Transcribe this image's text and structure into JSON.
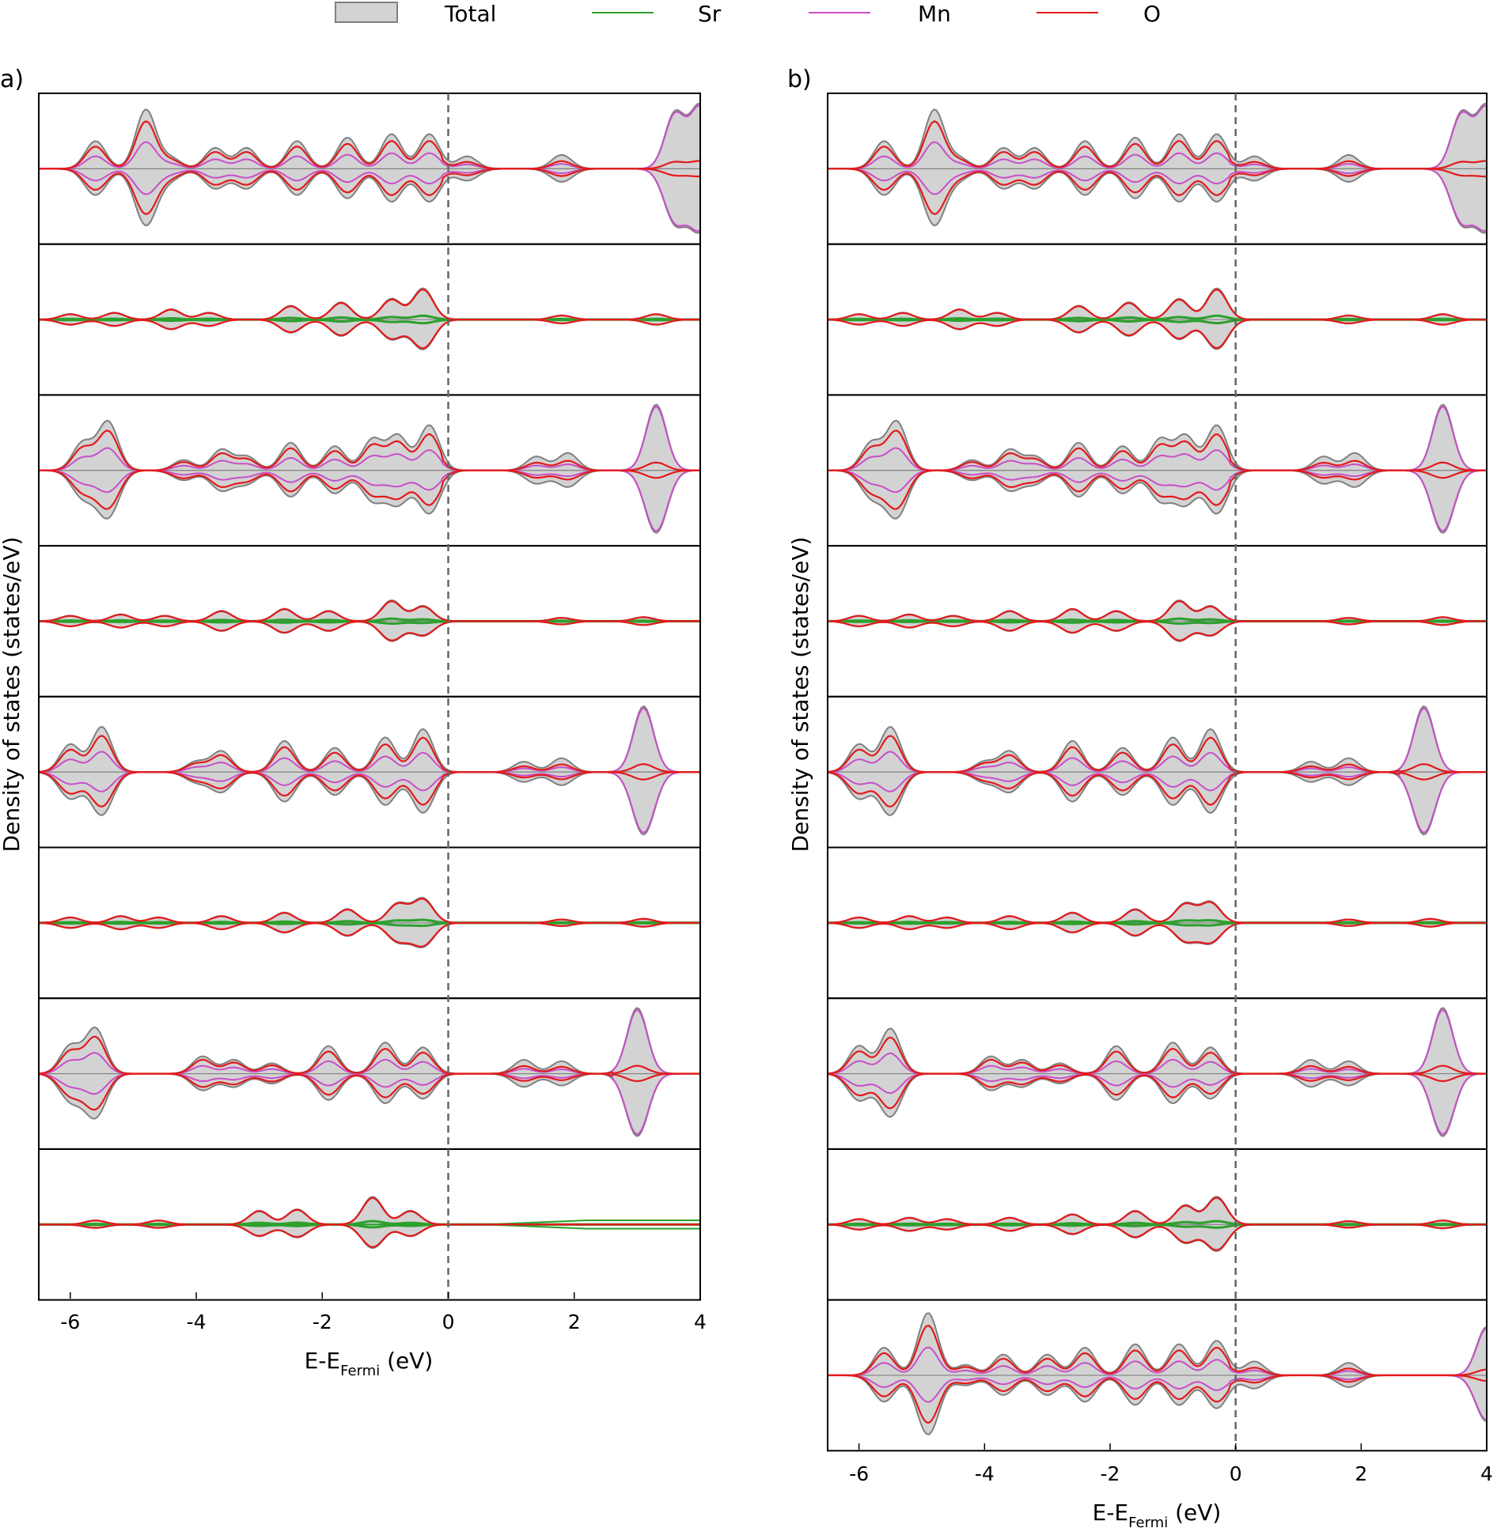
{
  "figure": {
    "panel_labels": [
      "a)",
      "b)"
    ]
  },
  "legend": {
    "entries": [
      "Total",
      "Sr",
      "Mn",
      "O"
    ]
  },
  "axes": {
    "ylabel": "Density of states (states/eV)",
    "xlabel_main": "E-E",
    "xlabel_sub": "Fermi",
    "xlabel_unit": " (eV)",
    "x_tick_labels": [
      "-6",
      "-4",
      "-2",
      "0",
      "2",
      "4"
    ]
  },
  "colors": {
    "total_fill": "#d3d3d3",
    "total_line": "#808080",
    "sr": "#2ca02c",
    "mn": "#c84fc8",
    "o": "#e31a1c",
    "fermi": "#666666"
  },
  "chart_data": [
    {
      "panel": "a)",
      "type": "area",
      "title": "",
      "xlabel": "E-E_Fermi (eV)",
      "ylabel": "Density of states (states/eV)",
      "xlim": [
        -6.5,
        4
      ],
      "x_ticks": [
        -6,
        -4,
        -2,
        0,
        2,
        4
      ],
      "fermi_level": 0,
      "series_names": [
        "Total",
        "Sr",
        "Mn",
        "O"
      ],
      "stacked_subplots": [
        {
          "kind": "mn",
          "peaks": [
            [
              -5.6,
              0.4
            ],
            [
              -4.8,
              0.85
            ],
            [
              -4.4,
              0.15
            ],
            [
              -3.7,
              0.3
            ],
            [
              -3.2,
              0.3
            ],
            [
              -2.4,
              0.4
            ],
            [
              -1.6,
              0.45
            ],
            [
              -0.9,
              0.5
            ],
            [
              -0.3,
              0.5
            ],
            [
              0.3,
              0.18
            ],
            [
              1.8,
              0.2
            ],
            [
              3.6,
              0.8
            ],
            [
              4.0,
              0.9
            ]
          ]
        },
        {
          "kind": "sr",
          "peaks": [
            [
              -6.0,
              0.08
            ],
            [
              -5.3,
              0.1
            ],
            [
              -4.4,
              0.15
            ],
            [
              -3.8,
              0.1
            ],
            [
              -2.5,
              0.2
            ],
            [
              -1.7,
              0.25
            ],
            [
              -0.9,
              0.3
            ],
            [
              -0.4,
              0.45
            ],
            [
              1.8,
              0.06
            ],
            [
              3.3,
              0.08
            ]
          ]
        },
        {
          "kind": "mn",
          "peaks": [
            [
              -5.8,
              0.4
            ],
            [
              -5.4,
              0.7
            ],
            [
              -4.2,
              0.15
            ],
            [
              -3.6,
              0.3
            ],
            [
              -3.2,
              0.2
            ],
            [
              -2.5,
              0.4
            ],
            [
              -1.8,
              0.35
            ],
            [
              -1.2,
              0.45
            ],
            [
              -0.8,
              0.5
            ],
            [
              -0.3,
              0.65
            ],
            [
              1.4,
              0.2
            ],
            [
              1.9,
              0.25
            ],
            [
              3.3,
              0.95
            ]
          ]
        },
        {
          "kind": "sr",
          "peaks": [
            [
              -6.0,
              0.08
            ],
            [
              -5.2,
              0.1
            ],
            [
              -4.5,
              0.08
            ],
            [
              -3.6,
              0.15
            ],
            [
              -2.6,
              0.18
            ],
            [
              -1.9,
              0.15
            ],
            [
              -0.9,
              0.3
            ],
            [
              -0.4,
              0.22
            ],
            [
              1.8,
              0.05
            ],
            [
              3.1,
              0.06
            ]
          ]
        },
        {
          "kind": "mn",
          "peaks": [
            [
              -6.0,
              0.4
            ],
            [
              -5.5,
              0.65
            ],
            [
              -4.0,
              0.15
            ],
            [
              -3.6,
              0.3
            ],
            [
              -2.6,
              0.45
            ],
            [
              -1.8,
              0.35
            ],
            [
              -1.0,
              0.5
            ],
            [
              -0.4,
              0.62
            ],
            [
              1.2,
              0.15
            ],
            [
              1.8,
              0.2
            ],
            [
              3.1,
              0.95
            ]
          ]
        },
        {
          "kind": "sr",
          "peaks": [
            [
              -6.0,
              0.08
            ],
            [
              -5.2,
              0.1
            ],
            [
              -4.6,
              0.08
            ],
            [
              -3.6,
              0.1
            ],
            [
              -2.6,
              0.15
            ],
            [
              -1.6,
              0.2
            ],
            [
              -0.8,
              0.28
            ],
            [
              -0.4,
              0.35
            ],
            [
              1.8,
              0.05
            ],
            [
              3.1,
              0.06
            ]
          ]
        },
        {
          "kind": "mn",
          "peaks": [
            [
              -6.0,
              0.4
            ],
            [
              -5.6,
              0.65
            ],
            [
              -3.9,
              0.25
            ],
            [
              -3.4,
              0.2
            ],
            [
              -2.8,
              0.15
            ],
            [
              -1.9,
              0.4
            ],
            [
              -1.0,
              0.45
            ],
            [
              -0.4,
              0.38
            ],
            [
              1.2,
              0.2
            ],
            [
              1.8,
              0.18
            ],
            [
              3.0,
              0.95
            ]
          ]
        },
        {
          "kind": "sr_metal",
          "peaks": [
            [
              -5.6,
              0.06
            ],
            [
              -4.6,
              0.06
            ],
            [
              -3.0,
              0.2
            ],
            [
              -2.4,
              0.22
            ],
            [
              -1.2,
              0.4
            ],
            [
              -0.6,
              0.2
            ]
          ]
        }
      ]
    },
    {
      "panel": "b)",
      "type": "area",
      "title": "",
      "xlabel": "E-E_Fermi (eV)",
      "ylabel": "Density of states (states/eV)",
      "xlim": [
        -6.5,
        4
      ],
      "x_ticks": [
        -6,
        -4,
        -2,
        0,
        2,
        4
      ],
      "fermi_level": 0,
      "series_names": [
        "Total",
        "Sr",
        "Mn",
        "O"
      ],
      "stacked_subplots": [
        {
          "kind": "mn",
          "peaks": [
            [
              -5.6,
              0.4
            ],
            [
              -4.8,
              0.85
            ],
            [
              -4.4,
              0.15
            ],
            [
              -3.7,
              0.3
            ],
            [
              -3.2,
              0.3
            ],
            [
              -2.4,
              0.4
            ],
            [
              -1.6,
              0.45
            ],
            [
              -0.9,
              0.5
            ],
            [
              -0.3,
              0.5
            ],
            [
              0.3,
              0.18
            ],
            [
              1.8,
              0.2
            ],
            [
              3.6,
              0.8
            ],
            [
              4.0,
              0.9
            ]
          ]
        },
        {
          "kind": "sr",
          "peaks": [
            [
              -6.0,
              0.08
            ],
            [
              -5.3,
              0.1
            ],
            [
              -4.4,
              0.15
            ],
            [
              -3.8,
              0.1
            ],
            [
              -2.5,
              0.2
            ],
            [
              -1.7,
              0.25
            ],
            [
              -0.9,
              0.3
            ],
            [
              -0.3,
              0.45
            ],
            [
              1.8,
              0.06
            ],
            [
              3.3,
              0.08
            ]
          ]
        },
        {
          "kind": "mn",
          "peaks": [
            [
              -5.8,
              0.4
            ],
            [
              -5.4,
              0.7
            ],
            [
              -4.2,
              0.15
            ],
            [
              -3.6,
              0.3
            ],
            [
              -3.2,
              0.2
            ],
            [
              -2.5,
              0.4
            ],
            [
              -1.8,
              0.35
            ],
            [
              -1.2,
              0.45
            ],
            [
              -0.8,
              0.5
            ],
            [
              -0.3,
              0.65
            ],
            [
              1.4,
              0.2
            ],
            [
              1.9,
              0.25
            ],
            [
              3.3,
              0.95
            ]
          ]
        },
        {
          "kind": "sr",
          "peaks": [
            [
              -6.0,
              0.08
            ],
            [
              -5.2,
              0.1
            ],
            [
              -4.5,
              0.08
            ],
            [
              -3.6,
              0.15
            ],
            [
              -2.6,
              0.18
            ],
            [
              -1.9,
              0.15
            ],
            [
              -0.9,
              0.3
            ],
            [
              -0.4,
              0.22
            ],
            [
              1.8,
              0.05
            ],
            [
              3.3,
              0.06
            ]
          ]
        },
        {
          "kind": "mn",
          "peaks": [
            [
              -6.0,
              0.4
            ],
            [
              -5.5,
              0.65
            ],
            [
              -4.0,
              0.15
            ],
            [
              -3.6,
              0.3
            ],
            [
              -2.6,
              0.45
            ],
            [
              -1.8,
              0.35
            ],
            [
              -1.0,
              0.5
            ],
            [
              -0.4,
              0.62
            ],
            [
              1.2,
              0.15
            ],
            [
              1.8,
              0.2
            ],
            [
              3.0,
              0.95
            ]
          ]
        },
        {
          "kind": "sr",
          "peaks": [
            [
              -6.0,
              0.08
            ],
            [
              -5.2,
              0.1
            ],
            [
              -4.6,
              0.08
            ],
            [
              -3.6,
              0.1
            ],
            [
              -2.6,
              0.15
            ],
            [
              -1.6,
              0.2
            ],
            [
              -0.8,
              0.28
            ],
            [
              -0.4,
              0.3
            ],
            [
              1.8,
              0.05
            ],
            [
              3.1,
              0.06
            ]
          ]
        },
        {
          "kind": "mn",
          "peaks": [
            [
              -6.0,
              0.4
            ],
            [
              -5.5,
              0.65
            ],
            [
              -3.9,
              0.25
            ],
            [
              -3.4,
              0.2
            ],
            [
              -2.8,
              0.15
            ],
            [
              -1.9,
              0.4
            ],
            [
              -1.0,
              0.45
            ],
            [
              -0.4,
              0.38
            ],
            [
              1.2,
              0.2
            ],
            [
              1.8,
              0.18
            ],
            [
              3.3,
              0.95
            ]
          ]
        },
        {
          "kind": "sr",
          "peaks": [
            [
              -6.0,
              0.08
            ],
            [
              -5.2,
              0.1
            ],
            [
              -4.6,
              0.08
            ],
            [
              -3.6,
              0.1
            ],
            [
              -2.6,
              0.15
            ],
            [
              -1.6,
              0.2
            ],
            [
              -0.8,
              0.28
            ],
            [
              -0.3,
              0.4
            ],
            [
              1.8,
              0.05
            ],
            [
              3.3,
              0.06
            ]
          ]
        },
        {
          "kind": "mn",
          "peaks": [
            [
              -5.6,
              0.4
            ],
            [
              -4.9,
              0.9
            ],
            [
              -4.3,
              0.15
            ],
            [
              -3.7,
              0.3
            ],
            [
              -3.0,
              0.3
            ],
            [
              -2.4,
              0.4
            ],
            [
              -1.6,
              0.45
            ],
            [
              -0.9,
              0.45
            ],
            [
              -0.3,
              0.5
            ],
            [
              0.3,
              0.2
            ],
            [
              1.8,
              0.18
            ],
            [
              4.0,
              0.7
            ]
          ]
        }
      ]
    }
  ]
}
